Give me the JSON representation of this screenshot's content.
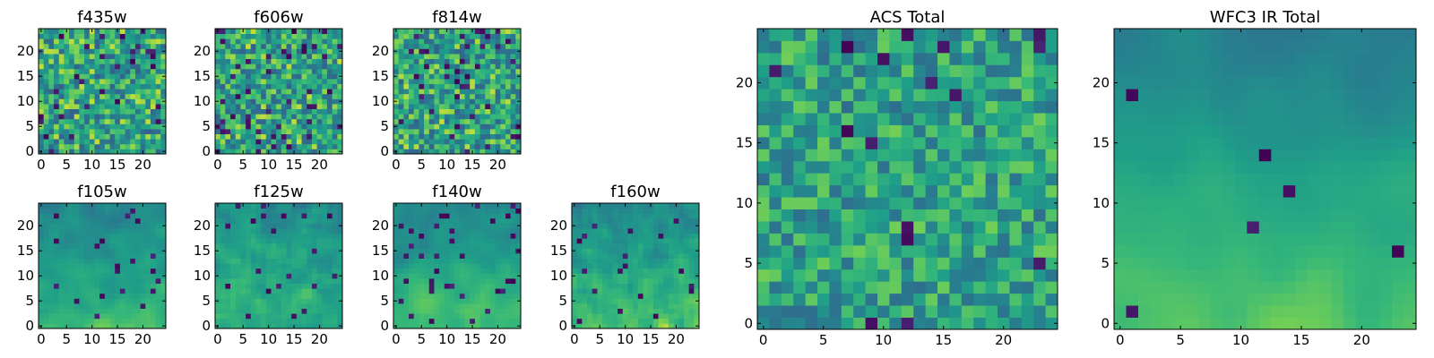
{
  "chart_data": [
    {
      "id": "f435w",
      "type": "heatmap",
      "title": "f435w",
      "colormap": "viridis",
      "grid_size": 25,
      "xlim": [
        0,
        25
      ],
      "ylim": [
        0,
        25
      ],
      "xticks": [
        0,
        5,
        10,
        15,
        20
      ],
      "yticks": [
        0,
        5,
        10,
        15,
        20
      ],
      "xlabel": "",
      "ylabel": "",
      "seed": 11,
      "smooth": 0,
      "vertical_trend": 0,
      "noise": 1.0,
      "dark_frac": 0.05
    },
    {
      "id": "f606w",
      "type": "heatmap",
      "title": "f606w",
      "colormap": "viridis",
      "grid_size": 25,
      "xlim": [
        0,
        25
      ],
      "ylim": [
        0,
        25
      ],
      "xticks": [
        0,
        5,
        10,
        15,
        20
      ],
      "yticks": [
        0,
        5,
        10,
        15,
        20
      ],
      "xlabel": "",
      "ylabel": "",
      "seed": 23,
      "smooth": 0,
      "vertical_trend": 0,
      "noise": 1.0,
      "dark_frac": 0.06
    },
    {
      "id": "f814w",
      "type": "heatmap",
      "title": "f814w",
      "colormap": "viridis",
      "grid_size": 25,
      "xlim": [
        0,
        25
      ],
      "ylim": [
        0,
        25
      ],
      "xticks": [
        0,
        5,
        10,
        15,
        20
      ],
      "yticks": [
        0,
        5,
        10,
        15,
        20
      ],
      "xlabel": "",
      "ylabel": "",
      "seed": 37,
      "smooth": 0,
      "vertical_trend": 0,
      "noise": 1.0,
      "dark_frac": 0.07
    },
    {
      "id": "f105w",
      "type": "heatmap",
      "title": "f105w",
      "colormap": "viridis",
      "grid_size": 25,
      "xlim": [
        0,
        25
      ],
      "ylim": [
        0,
        25
      ],
      "xticks": [
        0,
        5,
        10,
        15,
        20
      ],
      "yticks": [
        0,
        5,
        10,
        15,
        20
      ],
      "xlabel": "",
      "ylabel": "",
      "seed": 41,
      "smooth": 2,
      "vertical_trend": 0.25,
      "noise": 0.35,
      "dark_frac": 0.03
    },
    {
      "id": "f125w",
      "type": "heatmap",
      "title": "f125w",
      "colormap": "viridis",
      "grid_size": 25,
      "xlim": [
        0,
        25
      ],
      "ylim": [
        0,
        25
      ],
      "xticks": [
        0,
        5,
        10,
        15,
        20
      ],
      "yticks": [
        0,
        5,
        10,
        15,
        20
      ],
      "xlabel": "",
      "ylabel": "",
      "seed": 53,
      "smooth": 1,
      "vertical_trend": 0.15,
      "noise": 0.45,
      "dark_frac": 0.04
    },
    {
      "id": "f140w",
      "type": "heatmap",
      "title": "f140w",
      "colormap": "viridis",
      "grid_size": 25,
      "xlim": [
        0,
        25
      ],
      "ylim": [
        0,
        25
      ],
      "xticks": [
        0,
        5,
        10,
        15,
        20
      ],
      "yticks": [
        0,
        5,
        10,
        15,
        20
      ],
      "xlabel": "",
      "ylabel": "",
      "seed": 67,
      "smooth": 2,
      "vertical_trend": 0.3,
      "noise": 0.35,
      "dark_frac": 0.04
    },
    {
      "id": "f160w",
      "type": "heatmap",
      "title": "f160w",
      "colormap": "viridis",
      "grid_size": 25,
      "xlim": [
        0,
        25
      ],
      "ylim": [
        0,
        25
      ],
      "xticks": [
        0,
        5,
        10,
        15,
        20
      ],
      "yticks": [
        0,
        5,
        10,
        15,
        20
      ],
      "xlabel": "",
      "ylabel": "",
      "seed": 79,
      "smooth": 1,
      "vertical_trend": 0.3,
      "noise": 0.45,
      "dark_frac": 0.04
    },
    {
      "id": "acs-total",
      "type": "heatmap",
      "title": "ACS Total",
      "colormap": "viridis",
      "grid_size": 25,
      "xlim": [
        0,
        25
      ],
      "ylim": [
        0,
        25
      ],
      "xticks": [
        0,
        5,
        10,
        15,
        20
      ],
      "yticks": [
        0,
        5,
        10,
        15,
        20
      ],
      "xlabel": "",
      "ylabel": "",
      "seed": 97,
      "smooth": 0,
      "vertical_trend": 0,
      "noise": 0.8,
      "dark_frac": 0.03
    },
    {
      "id": "wfc3-ir-total",
      "type": "heatmap",
      "title": "WFC3 IR Total",
      "colormap": "viridis",
      "grid_size": 25,
      "xlim": [
        0,
        25
      ],
      "ylim": [
        0,
        25
      ],
      "xticks": [
        0,
        5,
        10,
        15,
        20
      ],
      "yticks": [
        0,
        5,
        10,
        15,
        20
      ],
      "xlabel": "",
      "ylabel": "",
      "seed": 131,
      "smooth": 3,
      "vertical_trend": 0.35,
      "noise": 0.25,
      "dark_frac": 0.02
    }
  ]
}
